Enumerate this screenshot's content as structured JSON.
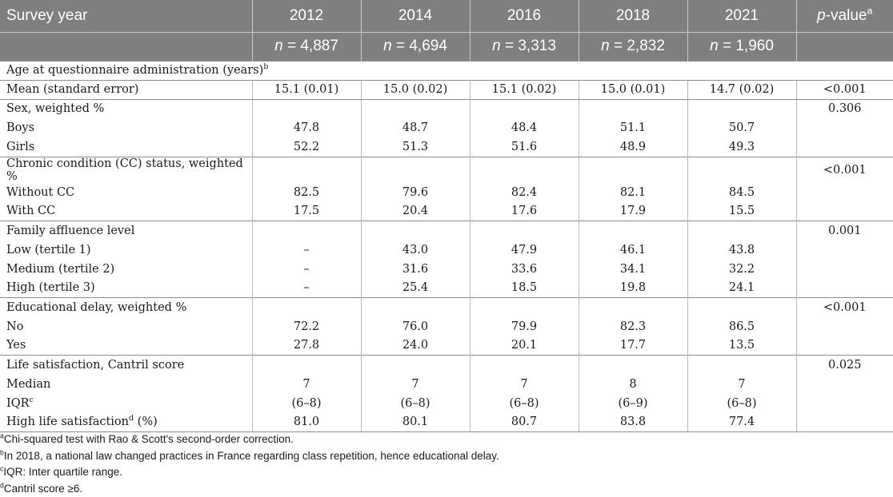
{
  "header": {
    "label": "Survey year",
    "years": [
      "2012",
      "2014",
      "2016",
      "2018",
      "2021"
    ],
    "pvalue_label": "-value",
    "pvalue_italic": "p",
    "pvalue_sup": "a",
    "n_label": "n",
    "n_values": [
      "= 4,887",
      "= 4,694",
      "= 3,313",
      "= 2,832",
      "= 1,960"
    ]
  },
  "rows": {
    "age": {
      "label": "Age at questionnaire administration (years)",
      "sup": "b"
    },
    "mean": {
      "label": "Mean (standard error)",
      "values": [
        "15.1 (0.01)",
        "15.0 (0.02)",
        "15.1 (0.02)",
        "15.0 (0.01)",
        "14.7 (0.02)"
      ],
      "p": "<0.001"
    },
    "sex": {
      "label": "Sex, weighted %",
      "p": "0.306"
    },
    "boys": {
      "label": "Boys",
      "values": [
        "47.8",
        "48.7",
        "48.4",
        "51.1",
        "50.7"
      ]
    },
    "girls": {
      "label": "Girls",
      "values": [
        "52.2",
        "51.3",
        "51.6",
        "48.9",
        "49.3"
      ]
    },
    "cc": {
      "label": "Chronic condition (CC) status, weighted %",
      "p": "<0.001"
    },
    "without_cc": {
      "label": "Without CC",
      "values": [
        "82.5",
        "79.6",
        "82.4",
        "82.1",
        "84.5"
      ]
    },
    "with_cc": {
      "label": "With CC",
      "values": [
        "17.5",
        "20.4",
        "17.6",
        "17.9",
        "15.5"
      ]
    },
    "fal": {
      "label": "Family affluence level",
      "p": "0.001"
    },
    "low": {
      "label": "Low (tertile 1)",
      "values": [
        "–",
        "43.0",
        "47.9",
        "46.1",
        "43.8"
      ]
    },
    "medium": {
      "label": "Medium (tertile 2)",
      "values": [
        "–",
        "31.6",
        "33.6",
        "34.1",
        "32.2"
      ]
    },
    "high": {
      "label": "High (tertile 3)",
      "values": [
        "–",
        "25.4",
        "18.5",
        "19.8",
        "24.1"
      ]
    },
    "edu": {
      "label": "Educational delay, weighted %",
      "p": "<0.001"
    },
    "no": {
      "label": "No",
      "values": [
        "72.2",
        "76.0",
        "79.9",
        "82.3",
        "86.5"
      ]
    },
    "yes": {
      "label": "Yes",
      "values": [
        "27.8",
        "24.0",
        "20.1",
        "17.7",
        "13.5"
      ]
    },
    "life": {
      "label": "Life satisfaction, Cantril score",
      "p": "0.025"
    },
    "median": {
      "label": "Median",
      "values": [
        "7",
        "7",
        "7",
        "8",
        "7"
      ]
    },
    "iqr": {
      "label": "IQR",
      "sup": "c",
      "values": [
        "(6–8)",
        "(6–8)",
        "(6–8)",
        "(6–9)",
        "(6–8)"
      ]
    },
    "high_ls": {
      "label": "High life satisfaction",
      "sup": "d",
      "suffix": " (%)",
      "values": [
        "81.0",
        "80.1",
        "80.7",
        "83.8",
        "77.4"
      ]
    }
  },
  "footnotes": [
    {
      "mark": "a",
      "text": "Chi-squared test with Rao & Scott's second-order correction."
    },
    {
      "mark": "b",
      "text": "In 2018, a national law changed practices in France regarding class repetition, hence educational delay."
    },
    {
      "mark": "c",
      "text": "IQR: Inter quartile range."
    },
    {
      "mark": "d",
      "text": "Cantril score ≥6."
    }
  ]
}
